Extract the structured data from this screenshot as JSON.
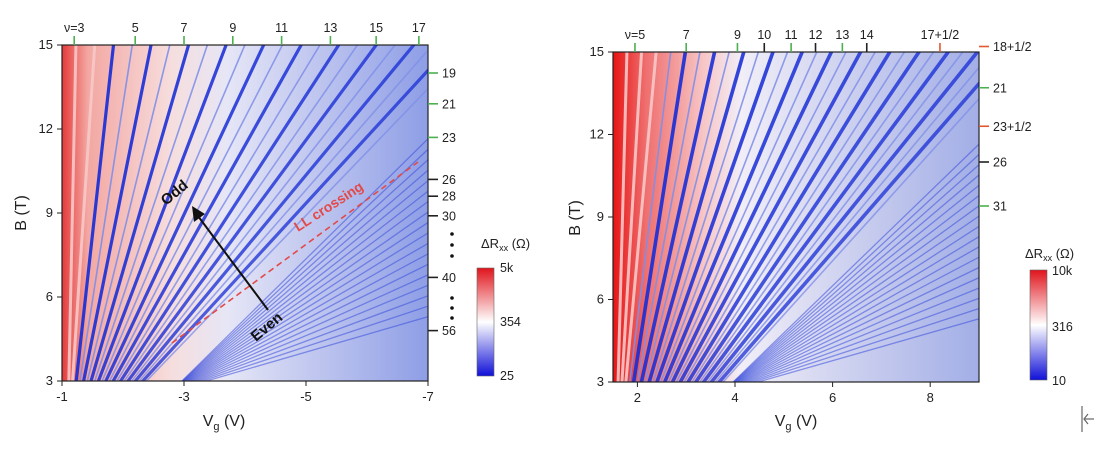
{
  "chart_data": [
    {
      "type": "heatmap",
      "title": "",
      "xlabel": "V",
      "xlabel_sub": "g",
      "xlabel_unit": " (V)",
      "ylabel": "B (T)",
      "xlim": [
        -1,
        -7
      ],
      "ylim": [
        3,
        15
      ],
      "x_ticks": [
        "-1",
        "-3",
        "-5",
        "-7"
      ],
      "x_tick_values": [
        -1,
        -3,
        -5,
        -7
      ],
      "y_ticks": [
        "3",
        "6",
        "9",
        "12",
        "15"
      ],
      "y_tick_values": [
        3,
        6,
        9,
        12,
        15
      ],
      "top_labels": [
        {
          "text": "ν=3",
          "x": -1.2
        },
        {
          "text": "5",
          "x": -2.2
        },
        {
          "text": "7",
          "x": -3.0
        },
        {
          "text": "9",
          "x": -3.8
        },
        {
          "text": "11",
          "x": -4.6
        },
        {
          "text": "13",
          "x": -5.4
        },
        {
          "text": "15",
          "x": -6.15
        },
        {
          "text": "17",
          "x": -6.85
        }
      ],
      "top_label_color": "#4caf50",
      "right_labels": [
        {
          "text": "19",
          "y": 14.0,
          "color": "#4caf50"
        },
        {
          "text": "21",
          "y": 12.9,
          "color": "#4caf50"
        },
        {
          "text": "23",
          "y": 11.7,
          "color": "#4caf50"
        },
        {
          "text": "26",
          "y": 10.2,
          "color": "#222222"
        },
        {
          "text": "28",
          "y": 9.6,
          "color": "#222222"
        },
        {
          "text": "30",
          "y": 8.9,
          "color": "#222222"
        },
        {
          "text": "40",
          "y": 6.7,
          "color": "#222222"
        },
        {
          "text": "56",
          "y": 4.8,
          "color": "#222222"
        }
      ],
      "annotations": {
        "odd": "Odd",
        "even": "Even",
        "ll_crossing": "LL crossing"
      },
      "colorbar": {
        "title": "ΔR",
        "title_sub": "xx",
        "title_unit": " (Ω)",
        "labels": [
          "5k",
          "354",
          "25"
        ],
        "colors": [
          "#e0141c",
          "#ffffff",
          "#1010d8"
        ]
      }
    },
    {
      "type": "heatmap",
      "title": "",
      "xlabel": "V",
      "xlabel_sub": "g",
      "xlabel_unit": " (V)",
      "ylabel": "B (T)",
      "xlim": [
        1.5,
        9
      ],
      "ylim": [
        3,
        15
      ],
      "x_ticks": [
        "2",
        "4",
        "6",
        "8"
      ],
      "x_tick_values": [
        2,
        4,
        6,
        8
      ],
      "y_ticks": [
        "3",
        "6",
        "9",
        "12",
        "15"
      ],
      "y_tick_values": [
        3,
        6,
        9,
        12,
        15
      ],
      "top_labels": [
        {
          "text": "ν=5",
          "x": 1.95,
          "color": "#4caf50"
        },
        {
          "text": "7",
          "x": 3.0,
          "color": "#4caf50"
        },
        {
          "text": "9",
          "x": 4.05,
          "color": "#4caf50"
        },
        {
          "text": "10",
          "x": 4.6,
          "color": "#222222"
        },
        {
          "text": "11",
          "x": 5.15,
          "color": "#4caf50"
        },
        {
          "text": "12",
          "x": 5.65,
          "color": "#222222"
        },
        {
          "text": "13",
          "x": 6.2,
          "color": "#4caf50"
        },
        {
          "text": "14",
          "x": 6.7,
          "color": "#222222"
        },
        {
          "text": "17+1/2",
          "x": 8.2,
          "color": "#e4572e"
        }
      ],
      "right_labels": [
        {
          "text": "18+1/2",
          "y": 15.2,
          "color": "#e4572e"
        },
        {
          "text": "21",
          "y": 13.7,
          "color": "#4caf50"
        },
        {
          "text": "23+1/2",
          "y": 12.3,
          "color": "#e4572e"
        },
        {
          "text": "26",
          "y": 11.0,
          "color": "#222222"
        },
        {
          "text": "31",
          "y": 9.4,
          "color": "#4caf50"
        }
      ],
      "colorbar": {
        "title": "ΔR",
        "title_sub": "xx",
        "title_unit": " (Ω)",
        "labels": [
          "10k",
          "316",
          "10"
        ],
        "colors": [
          "#e0141c",
          "#ffffff",
          "#1010d8"
        ]
      }
    }
  ]
}
